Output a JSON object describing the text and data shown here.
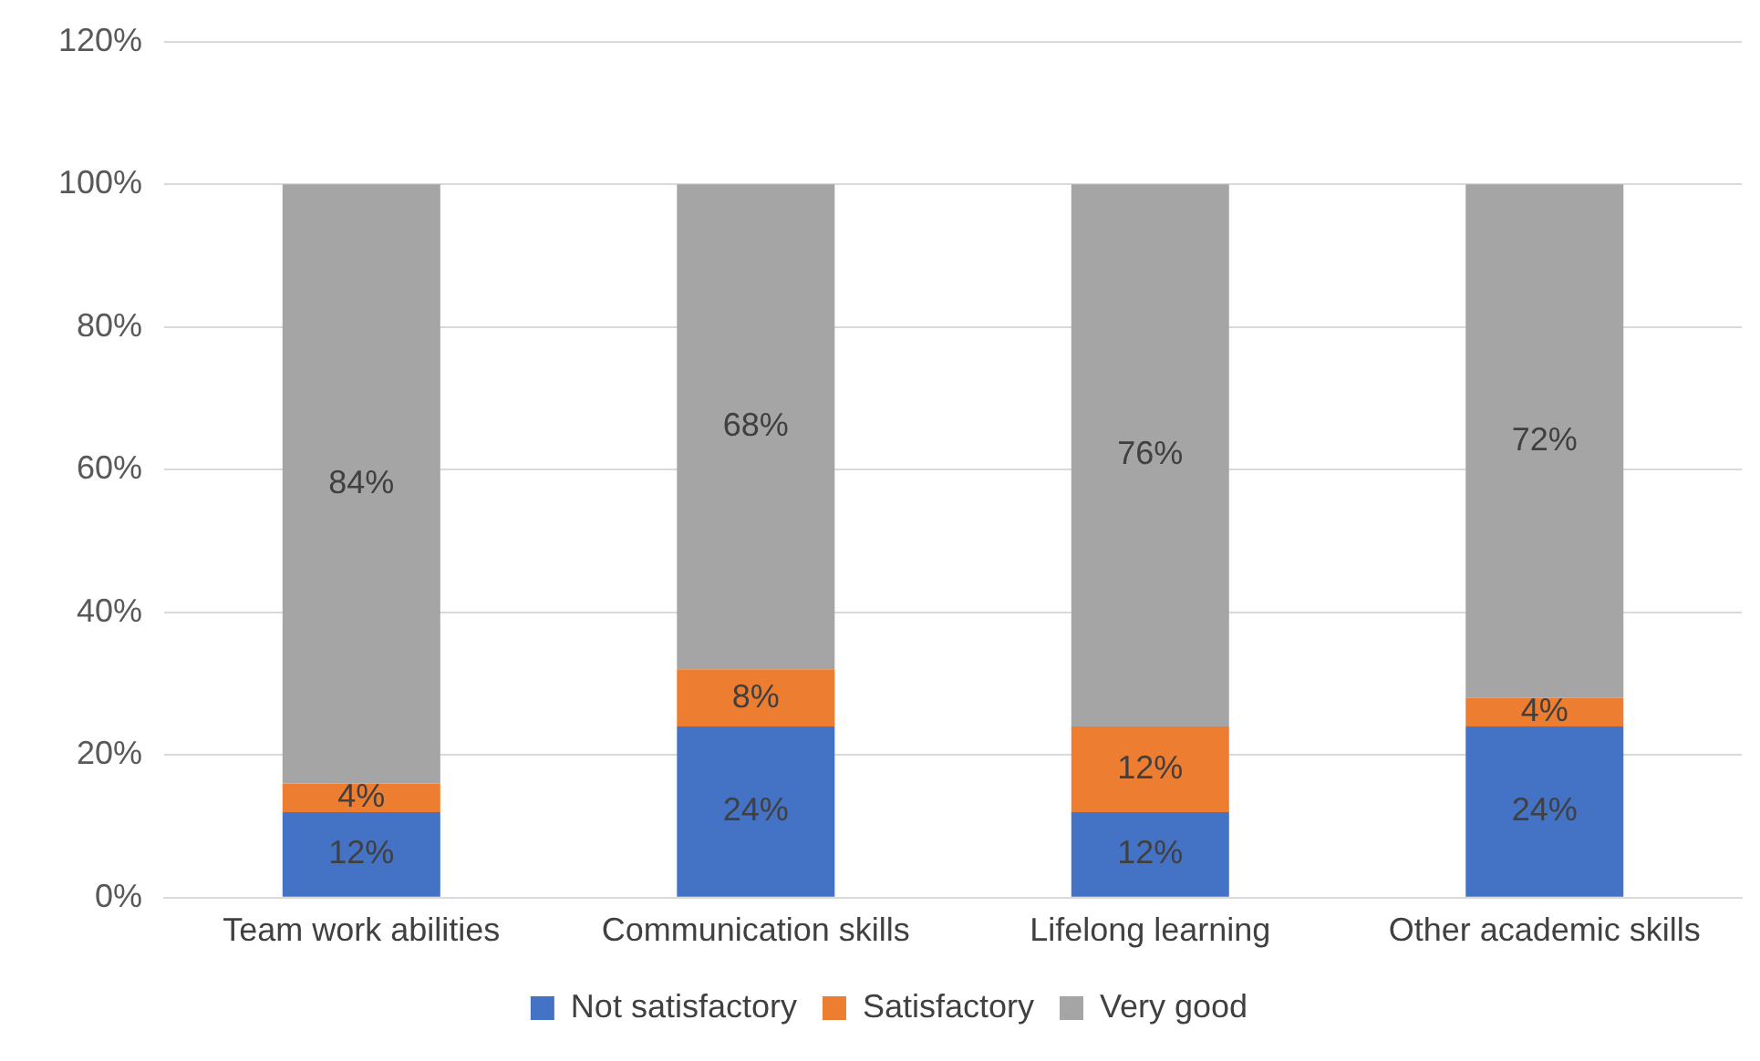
{
  "chart_data": {
    "type": "bar",
    "stacked": true,
    "categories": [
      "Team work abilities",
      "Communication skills",
      "Lifelong learning",
      "Other academic skills"
    ],
    "series": [
      {
        "name": "Not satisfactory",
        "color": "#4472c4",
        "values": [
          12,
          24,
          12,
          24
        ],
        "value_labels": [
          "12%",
          "24%",
          "12%",
          "24%"
        ]
      },
      {
        "name": "Satisfactory",
        "color": "#ed7d31",
        "values": [
          4,
          8,
          12,
          4
        ],
        "value_labels": [
          "4%",
          "8%",
          "12%",
          "4%"
        ]
      },
      {
        "name": "Very good",
        "color": "#a5a5a5",
        "values": [
          84,
          68,
          76,
          72
        ],
        "value_labels": [
          "84%",
          "68%",
          "76%",
          "72%"
        ]
      }
    ],
    "ylim": [
      0,
      120
    ],
    "yticks": [
      {
        "value": 0,
        "label": "0%"
      },
      {
        "value": 20,
        "label": "20%"
      },
      {
        "value": 40,
        "label": "40%"
      },
      {
        "value": 60,
        "label": "60%"
      },
      {
        "value": 80,
        "label": "80%"
      },
      {
        "value": 100,
        "label": "100%"
      },
      {
        "value": 120,
        "label": "120%"
      }
    ],
    "grid": "y",
    "legend": "bottom"
  }
}
